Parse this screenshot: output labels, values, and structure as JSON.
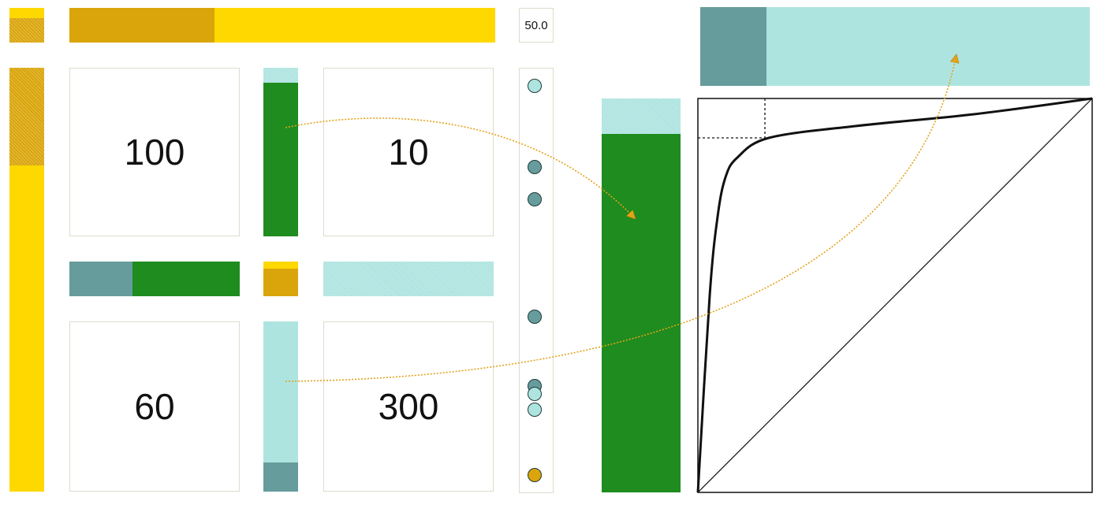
{
  "colors": {
    "gold": "#DAA50B",
    "yellow": "#FFD800",
    "teal": "#669C9C",
    "green": "#1E8C1E",
    "light_teal": "#AEE4E0",
    "arrow": "#E3A21A",
    "cell_border": "#dedbcc"
  },
  "threshold_label": "50.0",
  "matrix": {
    "cells": [
      {
        "id": "top-left",
        "value": "100"
      },
      {
        "id": "top-right",
        "value": "10"
      },
      {
        "id": "bottom-left",
        "value": "60"
      },
      {
        "id": "bottom-right",
        "value": "300"
      }
    ]
  },
  "proportions": {
    "top_left_corner_yellow_fraction": 0.3,
    "top_strip_gold_fraction": 0.34,
    "left_strip_gold_fraction": 0.23,
    "column1_light_teal_fraction": 0.09,
    "row1_teal_fraction": 0.37,
    "center_corner_yellow_fraction": 0.2,
    "row2_light_teal_fraction": 1.0,
    "column2_teal_fraction": 0.17,
    "big_column_light_teal_fraction": 0.09,
    "top_right_teal_fraction": 0.17
  },
  "dot_strip": {
    "dots": [
      {
        "value": 0.02,
        "color": "light_teal"
      },
      {
        "value": 0.22,
        "color": "teal"
      },
      {
        "value": 0.3,
        "color": "teal"
      },
      {
        "value": 0.59,
        "color": "teal"
      },
      {
        "value": 0.76,
        "color": "teal"
      },
      {
        "value": 0.78,
        "color": "light_teal"
      },
      {
        "value": 0.82,
        "color": "light_teal"
      },
      {
        "value": 0.98,
        "color": "gold"
      }
    ]
  },
  "roc_curve": {
    "points": [
      [
        0,
        0
      ],
      [
        0.03,
        0.5
      ],
      [
        0.05,
        0.7
      ],
      [
        0.07,
        0.8
      ],
      [
        0.1,
        0.85
      ],
      [
        0.18,
        0.9
      ],
      [
        0.4,
        0.93
      ],
      [
        0.7,
        0.96
      ],
      [
        1,
        1
      ]
    ],
    "threshold_point": [
      0.17,
      0.9
    ]
  }
}
